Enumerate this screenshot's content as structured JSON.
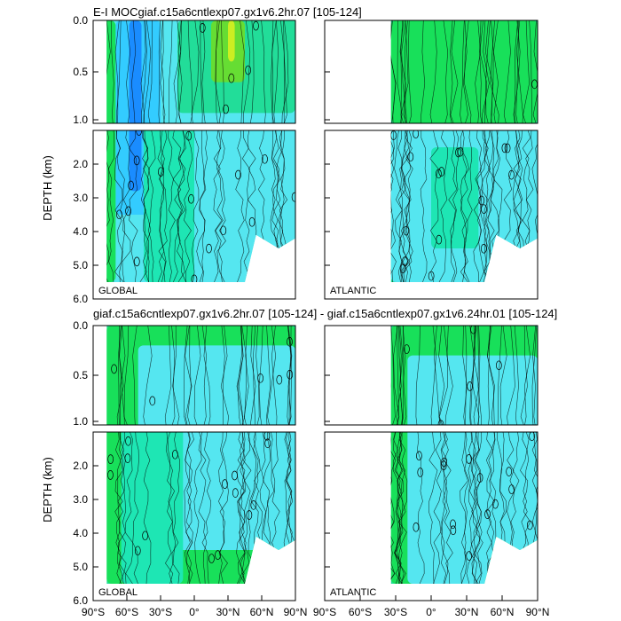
{
  "chart_data": {
    "type": "heatmap",
    "figure": "MOC depth-latitude contour comparison",
    "colors": {
      "deep_blue": "#1a8cff",
      "blue": "#33ccff",
      "light_blue": "#55e6f0",
      "cyan_green": "#1ee6b4",
      "teal_green": "#22dd99",
      "green": "#18e05a",
      "bright_green": "#66dd33",
      "yellow_green": "#ccee22",
      "contour": "#000000"
    },
    "x_ticks": [
      "90°S",
      "60°S",
      "30°S",
      "0°",
      "30°N",
      "60°N",
      "90°N"
    ],
    "x_range": [
      -90,
      90
    ],
    "y_axis": {
      "label": "DEPTH (km)",
      "upper_ticks": [
        "0.0",
        "0.5",
        "1.0"
      ],
      "upper_range": [
        0,
        1
      ],
      "lower_ticks": [
        "2.0",
        "3.0",
        "4.0",
        "5.0",
        "6.0"
      ],
      "lower_range": [
        1,
        6
      ]
    },
    "panel_groups": [
      {
        "title": "E-I MOCgiaf.c15a6cntlexp07.gx1v6.2hr.07 [105-124]",
        "panels": [
          {
            "label": "GLOBAL",
            "lat_start": -78,
            "bottom_depth_km": 5.5,
            "seamount": {
              "lat": [
                45,
                90
              ],
              "top_km": 4.2
            },
            "fields": [
              {
                "color": "light_blue",
                "lat": [
                  -75,
                  90
                ],
                "depth": [
                  0,
                  5.5
                ]
              },
              {
                "color": "blue",
                "lat": [
                  -70,
                  -30
                ],
                "depth": [
                  0,
                  3.5
                ]
              },
              {
                "color": "deep_blue",
                "lat": [
                  -58,
                  -47
                ],
                "depth": [
                  0,
                  2.8
                ]
              },
              {
                "color": "teal_green",
                "lat": [
                  -15,
                  90
                ],
                "depth": [
                  0,
                  0.9
                ]
              },
              {
                "color": "bright_green",
                "lat": [
                  15,
                  45
                ],
                "depth": [
                  0,
                  0.6
                ]
              },
              {
                "color": "yellow_green",
                "lat": [
                  30,
                  36
                ],
                "depth": [
                  0,
                  0.4
                ]
              },
              {
                "color": "cyan_green",
                "lat": [
                  -45,
                  0
                ],
                "depth": [
                  1,
                  5.5
                ]
              },
              {
                "color": "green",
                "lat": [
                  -85,
                  -70
                ],
                "depth": [
                  0,
                  5.5
                ]
              }
            ]
          },
          {
            "label": "ATLANTIC",
            "lat_start": -34,
            "bottom_depth_km": 5.5,
            "seamount": {
              "lat": [
                45,
                90
              ],
              "top_km": 4.2
            },
            "fields": [
              {
                "color": "green",
                "lat": [
                  -34,
                  90
                ],
                "depth": [
                  0,
                  1
                ]
              },
              {
                "color": "light_blue",
                "lat": [
                  -34,
                  90
                ],
                "depth": [
                  1,
                  5.5
                ]
              },
              {
                "color": "cyan_green",
                "lat": [
                  0,
                  40
                ],
                "depth": [
                  1.5,
                  4.5
                ]
              }
            ]
          }
        ]
      },
      {
        "title": "giaf.c15a6cntlexp07.gx1v6.2hr.07 [105-124] - giaf.c15a6cntlexp07.gx1v6.24hr.01 [105-124]",
        "panels": [
          {
            "label": "GLOBAL",
            "lat_start": -78,
            "bottom_depth_km": 5.5,
            "seamount": {
              "lat": [
                45,
                90
              ],
              "top_km": 4.2
            },
            "fields": [
              {
                "color": "green",
                "lat": [
                  -78,
                  90
                ],
                "depth": [
                  0,
                  5.5
                ]
              },
              {
                "color": "light_blue",
                "lat": [
                  -50,
                  90
                ],
                "depth": [
                  0.2,
                  4.5
                ]
              },
              {
                "color": "cyan_green",
                "lat": [
                  -65,
                  -10
                ],
                "depth": [
                  1,
                  5.5
                ]
              }
            ]
          },
          {
            "label": "ATLANTIC",
            "lat_start": -34,
            "bottom_depth_km": 5.5,
            "seamount": {
              "lat": [
                45,
                90
              ],
              "top_km": 4.2
            },
            "fields": [
              {
                "color": "green",
                "lat": [
                  -34,
                  90
                ],
                "depth": [
                  0,
                  5.5
                ]
              },
              {
                "color": "light_blue",
                "lat": [
                  -20,
                  90
                ],
                "depth": [
                  0.3,
                  5.5
                ]
              }
            ]
          }
        ]
      }
    ]
  }
}
